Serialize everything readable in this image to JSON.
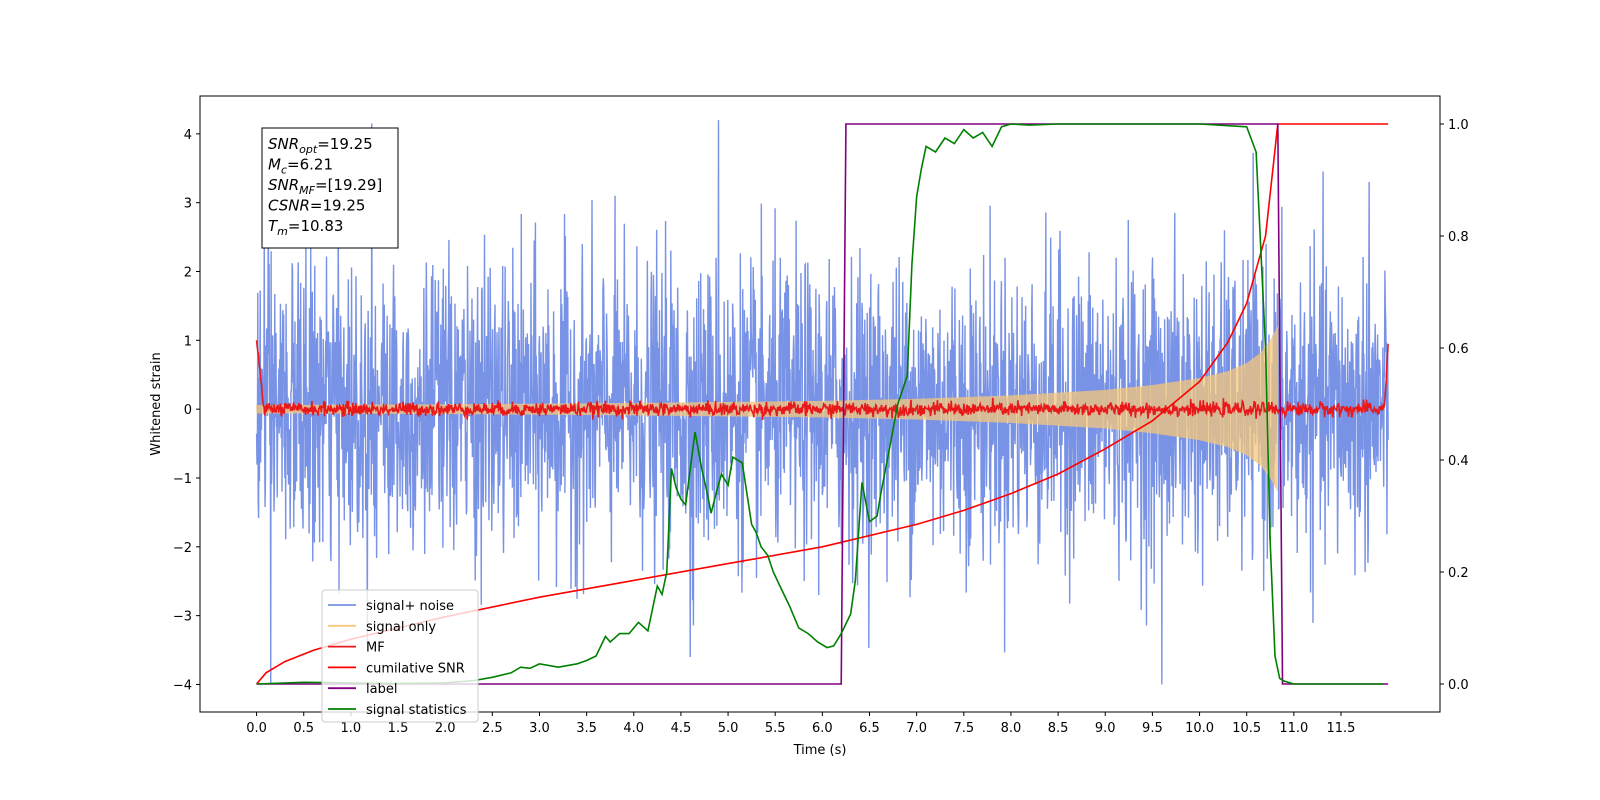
{
  "chart_data": {
    "type": "line",
    "xlabel": "Time (s)",
    "ylabel": "Whitened strain",
    "xlim": [
      -0.6,
      12.55
    ],
    "ylim": [
      -4.4,
      4.55
    ],
    "y2lim": [
      -0.05,
      1.05
    ],
    "xticks": [
      0.0,
      0.5,
      1.0,
      1.5,
      2.0,
      2.5,
      3.0,
      3.5,
      4.0,
      4.5,
      5.0,
      5.5,
      6.0,
      6.5,
      7.0,
      7.5,
      8.0,
      8.5,
      9.0,
      9.5,
      10.0,
      10.5,
      11.0,
      11.5
    ],
    "xtick_labels": [
      "0.0",
      "0.5",
      "1.0",
      "1.5",
      "2.0",
      "2.5",
      "3.0",
      "3.5",
      "4.0",
      "4.5",
      "5.0",
      "5.5",
      "6.0",
      "6.5",
      "7.0",
      "7.5",
      "8.0",
      "8.5",
      "9.0",
      "9.5",
      "10.0",
      "10.5",
      "11.0",
      "11.5"
    ],
    "yticks": [
      -4,
      -3,
      -2,
      -1,
      0,
      1,
      2,
      3,
      4
    ],
    "ytick_labels": [
      "−4",
      "−3",
      "−2",
      "−1",
      "0",
      "1",
      "2",
      "3",
      "4"
    ],
    "y2ticks": [
      0.0,
      0.2,
      0.4,
      0.6,
      0.8,
      1.0
    ],
    "y2tick_labels": [
      "0.0",
      "0.2",
      "0.4",
      "0.6",
      "0.8",
      "1.0"
    ],
    "grid": false,
    "legend_position": "lower-left",
    "annotation": {
      "lines": [
        {
          "main": "SNR",
          "sub": "opt",
          "rest": "=19.25"
        },
        {
          "main": "M",
          "sub": "c",
          "rest": "=6.21"
        },
        {
          "main": "SNR",
          "sub": "MF",
          "rest": "=[19.29]"
        },
        {
          "main": "CSNR",
          "sub": "",
          "rest": "=19.25"
        },
        {
          "main": "T",
          "sub": "m",
          "rest": "=10.83"
        }
      ]
    },
    "series": [
      {
        "name": "signal+ noise",
        "color": "#7892e6",
        "axis": "left",
        "kind": "noise",
        "x_range": [
          0.0,
          12.0
        ],
        "noise_sd": 1.1,
        "peak_max": 4.2,
        "peak_min": -4.0,
        "sample_peaks": [
          [
            0.08,
            2.6
          ],
          [
            0.15,
            -4.0
          ],
          [
            1.22,
            4.15
          ],
          [
            4.9,
            4.2
          ],
          [
            4.6,
            -3.6
          ],
          [
            9.6,
            -4.0
          ],
          [
            11.8,
            3.3
          ]
        ]
      },
      {
        "name": "signal only",
        "color": "#f5c77a",
        "axis": "left",
        "kind": "chirp",
        "x_range": [
          0.0,
          10.83
        ],
        "envelope_x": [
          0.0,
          2.0,
          4.0,
          6.0,
          7.0,
          8.0,
          9.0,
          9.5,
          10.0,
          10.3,
          10.5,
          10.65,
          10.75,
          10.83
        ],
        "envelope_y": [
          0.06,
          0.07,
          0.09,
          0.12,
          0.15,
          0.2,
          0.28,
          0.35,
          0.45,
          0.55,
          0.67,
          0.82,
          1.0,
          1.2
        ]
      },
      {
        "name": "MF",
        "color": "#e8191b",
        "axis": "left",
        "kind": "mf",
        "x_range": [
          0.0,
          12.0
        ],
        "start_value": 1.0,
        "baseline": 0.0,
        "noise_sd": 0.05,
        "end_value": 0.95
      },
      {
        "name": "cumilative SNR",
        "color": "#ff0000",
        "axis": "right",
        "kind": "line",
        "x": [
          0.0,
          0.1,
          0.3,
          0.6,
          1.0,
          2.0,
          3.0,
          4.0,
          5.0,
          6.0,
          7.0,
          7.5,
          8.0,
          8.5,
          9.0,
          9.5,
          10.0,
          10.3,
          10.5,
          10.7,
          10.83,
          11.0,
          12.0
        ],
        "y": [
          0.0,
          0.02,
          0.04,
          0.06,
          0.08,
          0.12,
          0.155,
          0.185,
          0.215,
          0.245,
          0.285,
          0.31,
          0.34,
          0.375,
          0.42,
          0.47,
          0.54,
          0.61,
          0.68,
          0.8,
          1.0,
          1.0,
          1.0
        ]
      },
      {
        "name": "label",
        "color": "#800080",
        "axis": "right",
        "kind": "line",
        "x": [
          0.0,
          6.2,
          6.25,
          10.83,
          10.88,
          12.0
        ],
        "y": [
          0.0,
          0.0,
          1.0,
          1.0,
          0.0,
          0.0
        ]
      },
      {
        "name": "signal statistics",
        "color": "#008000",
        "axis": "right",
        "kind": "line",
        "x": [
          0.0,
          0.5,
          1.0,
          1.5,
          2.0,
          2.3,
          2.5,
          2.7,
          2.8,
          2.9,
          3.0,
          3.2,
          3.4,
          3.5,
          3.6,
          3.7,
          3.75,
          3.85,
          3.95,
          4.05,
          4.15,
          4.25,
          4.3,
          4.35,
          4.4,
          4.45,
          4.5,
          4.55,
          4.65,
          4.72,
          4.78,
          4.82,
          4.88,
          4.93,
          5.0,
          5.05,
          5.15,
          5.25,
          5.3,
          5.35,
          5.42,
          5.48,
          5.55,
          5.65,
          5.75,
          5.85,
          5.95,
          6.05,
          6.12,
          6.2,
          6.3,
          6.35,
          6.42,
          6.5,
          6.58,
          6.62,
          6.7,
          6.8,
          6.9,
          6.95,
          7.0,
          7.05,
          7.1,
          7.15,
          7.2,
          7.3,
          7.4,
          7.5,
          7.6,
          7.7,
          7.8,
          7.9,
          8.0,
          8.2,
          8.5,
          9.0,
          9.5,
          10.0,
          10.5,
          10.6,
          10.7,
          10.75,
          10.8,
          10.85,
          10.9,
          11.0,
          11.5,
          11.95
        ],
        "y": [
          0.0,
          0.003,
          0.002,
          0.001,
          0.002,
          0.006,
          0.012,
          0.02,
          0.03,
          0.028,
          0.036,
          0.03,
          0.036,
          0.042,
          0.05,
          0.085,
          0.075,
          0.09,
          0.09,
          0.11,
          0.095,
          0.175,
          0.16,
          0.2,
          0.385,
          0.35,
          0.33,
          0.32,
          0.45,
          0.385,
          0.34,
          0.305,
          0.345,
          0.375,
          0.355,
          0.405,
          0.395,
          0.285,
          0.27,
          0.245,
          0.23,
          0.2,
          0.175,
          0.14,
          0.1,
          0.09,
          0.075,
          0.065,
          0.068,
          0.09,
          0.125,
          0.185,
          0.36,
          0.29,
          0.3,
          0.34,
          0.41,
          0.5,
          0.55,
          0.75,
          0.87,
          0.92,
          0.96,
          0.955,
          0.95,
          0.975,
          0.965,
          0.99,
          0.975,
          0.985,
          0.96,
          0.995,
          1.0,
          0.998,
          1.0,
          1.0,
          1.0,
          1.0,
          0.995,
          0.95,
          0.6,
          0.25,
          0.05,
          0.01,
          0.005,
          0.0,
          0.0,
          0.0
        ]
      }
    ]
  }
}
